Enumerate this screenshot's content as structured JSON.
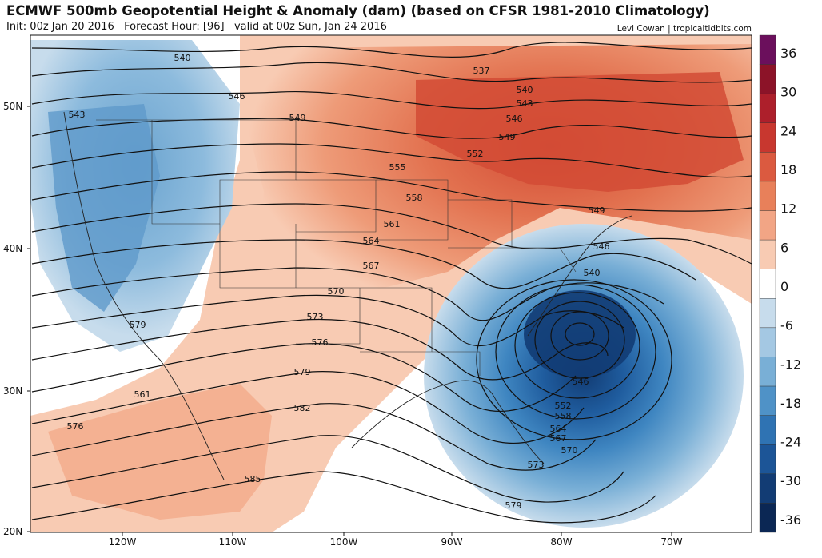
{
  "header": {
    "title": "ECMWF 500mb Geopotential Height & Anomaly (dam) (based on CFSR 1981-2010 Climatology)",
    "init": "Init: 00z Jan 20 2016",
    "forecast_hour": "Forecast Hour: [96]",
    "valid": "valid at 00z Sun, Jan 24 2016",
    "credit": "Levi Cowan | tropicaltidbits.com"
  },
  "map": {
    "lat_labels": [
      "50N",
      "40N",
      "30N",
      "20N"
    ],
    "lon_labels": [
      "120W",
      "110W",
      "100W",
      "90W",
      "80W",
      "70W"
    ],
    "height_labels": [
      "540",
      "546",
      "543",
      "549",
      "537",
      "540",
      "543",
      "546",
      "549",
      "552",
      "555",
      "558",
      "561",
      "564",
      "567",
      "570",
      "573",
      "576",
      "579",
      "561",
      "576",
      "579",
      "582",
      "585",
      "549",
      "546",
      "540",
      "546",
      "552",
      "558",
      "564",
      "567",
      "570",
      "573",
      "579"
    ],
    "low_center": "trough over the Carolinas coast"
  },
  "colorbar": {
    "ticks": [
      "36",
      "30",
      "24",
      "18",
      "12",
      "6",
      "0",
      "-6",
      "-12",
      "-18",
      "-24",
      "-30",
      "-36"
    ],
    "colors": [
      "#6b0f5c",
      "#8c1328",
      "#ad1f2b",
      "#c8372f",
      "#db5a40",
      "#e8805a",
      "#f2a585",
      "#f8cbb3",
      "#ffffff",
      "#c7dcec",
      "#a4c8e3",
      "#79afd6",
      "#4f92c7",
      "#2f73b3",
      "#1c5597",
      "#123c74",
      "#0b2754"
    ]
  }
}
